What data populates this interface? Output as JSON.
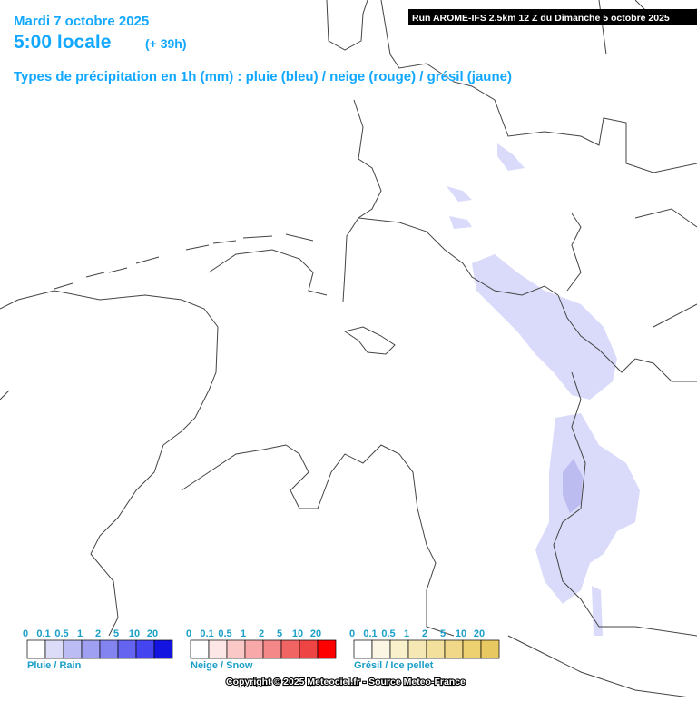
{
  "header": {
    "date": "Mardi 7 octobre 2025",
    "time": "5:00 locale",
    "offset": "(+ 39h)",
    "subtitle": "Types de précipitation en 1h (mm) : pluie (bleu) / neige (rouge) / grésil (jaune)"
  },
  "run": "Run AROME-IFS 2.5km 12 Z du Dimanche 5 octobre 2025",
  "legends": [
    {
      "title": "Pluie / Rain",
      "ticks": [
        "0",
        "0.1",
        "0.5",
        "1",
        "2",
        "5",
        "10",
        "20"
      ],
      "colors": [
        "#ffffff",
        "#dcdcf8",
        "#bcbcf4",
        "#a0a0f2",
        "#8484f0",
        "#6464f0",
        "#4444f0",
        "#1414e0"
      ]
    },
    {
      "title": "Neige / Snow",
      "ticks": [
        "0",
        "0.1",
        "0.5",
        "1",
        "2",
        "5",
        "10",
        "20"
      ],
      "colors": [
        "#ffffff",
        "#fde6e6",
        "#fbc8c8",
        "#f8a8a8",
        "#f48888",
        "#f06464",
        "#ee4444",
        "#ff0000"
      ]
    },
    {
      "title": "Grésil / Ice pellet",
      "ticks": [
        "0",
        "0.1",
        "0.5",
        "1",
        "2",
        "5",
        "10",
        "20"
      ],
      "colors": [
        "#ffffff",
        "#fbf6e4",
        "#f9f0cc",
        "#f6e8b4",
        "#f3e09c",
        "#f0d888",
        "#edd070",
        "#e8c860"
      ]
    }
  ],
  "copyright": "Copyright © 2025 Meteociel.fr - Source Meteo-France"
}
